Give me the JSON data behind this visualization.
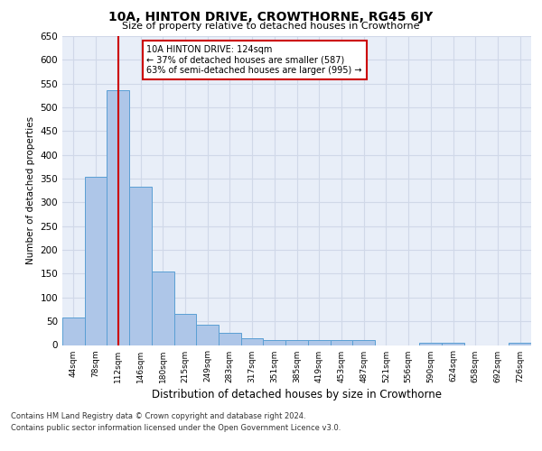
{
  "title": "10A, HINTON DRIVE, CROWTHORNE, RG45 6JY",
  "subtitle": "Size of property relative to detached houses in Crowthorne",
  "xlabel": "Distribution of detached houses by size in Crowthorne",
  "ylabel": "Number of detached properties",
  "categories": [
    "44sqm",
    "78sqm",
    "112sqm",
    "146sqm",
    "180sqm",
    "215sqm",
    "249sqm",
    "283sqm",
    "317sqm",
    "351sqm",
    "385sqm",
    "419sqm",
    "453sqm",
    "487sqm",
    "521sqm",
    "556sqm",
    "590sqm",
    "624sqm",
    "658sqm",
    "692sqm",
    "726sqm"
  ],
  "values": [
    57,
    354,
    537,
    333,
    155,
    65,
    42,
    25,
    15,
    10,
    10,
    10,
    10,
    10,
    0,
    0,
    5,
    5,
    0,
    0,
    5
  ],
  "bar_color": "#aec6e8",
  "bar_edge_color": "#5a9fd4",
  "grid_color": "#d0d8e8",
  "background_color": "#e8eef8",
  "annotation_box_color": "#ffffff",
  "annotation_box_edge": "#cc0000",
  "annotation_line_color": "#cc0000",
  "annotation_text": "10A HINTON DRIVE: 124sqm\n← 37% of detached houses are smaller (587)\n63% of semi-detached houses are larger (995) →",
  "property_idx": 2,
  "ylim": [
    0,
    650
  ],
  "yticks": [
    0,
    50,
    100,
    150,
    200,
    250,
    300,
    350,
    400,
    450,
    500,
    550,
    600,
    650
  ],
  "footer_line1": "Contains HM Land Registry data © Crown copyright and database right 2024.",
  "footer_line2": "Contains public sector information licensed under the Open Government Licence v3.0."
}
